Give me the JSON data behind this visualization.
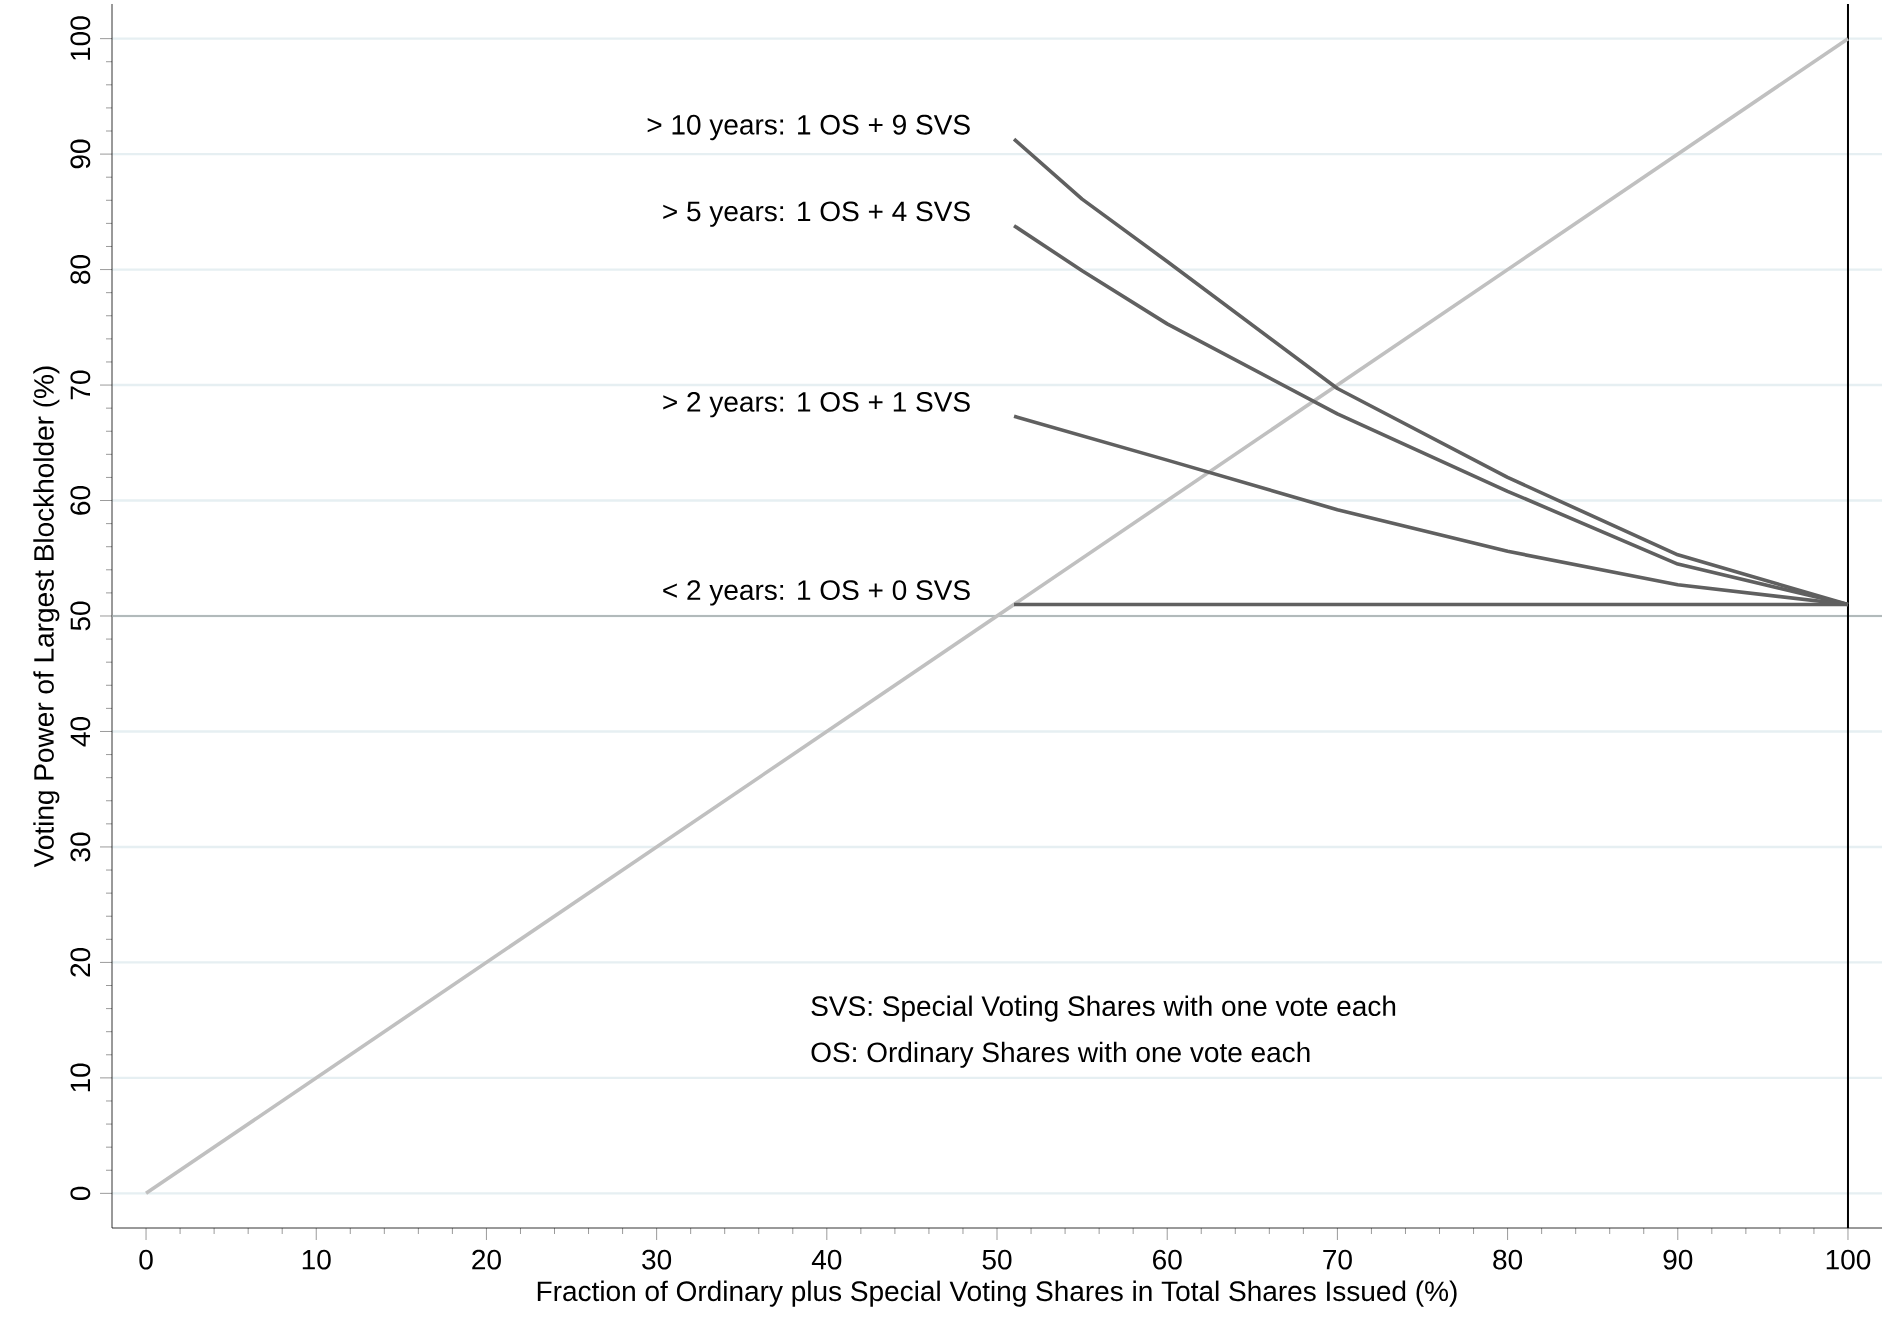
{
  "chart_data": {
    "type": "line",
    "xlabel": "Fraction of Ordinary plus Special Voting Shares in Total Shares Issued (%)",
    "ylabel": "Voting Power of Largest Blockholder (%)",
    "xlim": [
      -2,
      102
    ],
    "ylim": [
      -3,
      103
    ],
    "xticks": [
      0,
      {
        "value": 2,
        "label": null
      },
      {
        "value": 4,
        "label": null
      },
      {
        "value": 6,
        "label": null
      },
      {
        "value": 8,
        "label": null
      },
      10,
      {
        "value": 12,
        "label": null
      },
      {
        "value": 14,
        "label": null
      },
      {
        "value": 16,
        "label": null
      },
      {
        "value": 18,
        "label": null
      },
      20,
      {
        "value": 22,
        "label": null
      },
      {
        "value": 24,
        "label": null
      },
      {
        "value": 26,
        "label": null
      },
      {
        "value": 28,
        "label": null
      },
      30,
      {
        "value": 32,
        "label": null
      },
      {
        "value": 34,
        "label": null
      },
      {
        "value": 36,
        "label": null
      },
      {
        "value": 38,
        "label": null
      },
      40,
      {
        "value": 42,
        "label": null
      },
      {
        "value": 44,
        "label": null
      },
      {
        "value": 46,
        "label": null
      },
      {
        "value": 48,
        "label": null
      },
      50,
      {
        "value": 52,
        "label": null
      },
      {
        "value": 54,
        "label": null
      },
      {
        "value": 56,
        "label": null
      },
      {
        "value": 58,
        "label": null
      },
      60,
      {
        "value": 62,
        "label": null
      },
      {
        "value": 64,
        "label": null
      },
      {
        "value": 66,
        "label": null
      },
      {
        "value": 68,
        "label": null
      },
      70,
      {
        "value": 72,
        "label": null
      },
      {
        "value": 74,
        "label": null
      },
      {
        "value": 76,
        "label": null
      },
      {
        "value": 78,
        "label": null
      },
      80,
      {
        "value": 82,
        "label": null
      },
      {
        "value": 84,
        "label": null
      },
      {
        "value": 86,
        "label": null
      },
      {
        "value": 88,
        "label": null
      },
      90,
      {
        "value": 92,
        "label": null
      },
      {
        "value": 94,
        "label": null
      },
      {
        "value": 96,
        "label": null
      },
      {
        "value": 98,
        "label": null
      },
      100
    ],
    "yticks": [
      0,
      {
        "value": 2,
        "label": null
      },
      {
        "value": 4,
        "label": null
      },
      {
        "value": 6,
        "label": null
      },
      {
        "value": 8,
        "label": null
      },
      10,
      {
        "value": 12,
        "label": null
      },
      {
        "value": 14,
        "label": null
      },
      {
        "value": 16,
        "label": null
      },
      {
        "value": 18,
        "label": null
      },
      20,
      {
        "value": 22,
        "label": null
      },
      {
        "value": 24,
        "label": null
      },
      {
        "value": 26,
        "label": null
      },
      {
        "value": 28,
        "label": null
      },
      30,
      {
        "value": 32,
        "label": null
      },
      {
        "value": 34,
        "label": null
      },
      {
        "value": 36,
        "label": null
      },
      {
        "value": 38,
        "label": null
      },
      40,
      {
        "value": 42,
        "label": null
      },
      {
        "value": 44,
        "label": null
      },
      {
        "value": 46,
        "label": null
      },
      {
        "value": 48,
        "label": null
      },
      50,
      {
        "value": 52,
        "label": null
      },
      {
        "value": 54,
        "label": null
      },
      {
        "value": 56,
        "label": null
      },
      {
        "value": 58,
        "label": null
      },
      60,
      {
        "value": 62,
        "label": null
      },
      {
        "value": 64,
        "label": null
      },
      {
        "value": 66,
        "label": null
      },
      {
        "value": 68,
        "label": null
      },
      70,
      {
        "value": 72,
        "label": null
      },
      {
        "value": 74,
        "label": null
      },
      {
        "value": 76,
        "label": null
      },
      {
        "value": 78,
        "label": null
      },
      80,
      {
        "value": 82,
        "label": null
      },
      {
        "value": 84,
        "label": null
      },
      {
        "value": 86,
        "label": null
      },
      {
        "value": 88,
        "label": null
      },
      90,
      {
        "value": 92,
        "label": null
      },
      {
        "value": 94,
        "label": null
      },
      {
        "value": 96,
        "label": null
      },
      {
        "value": 98,
        "label": null
      },
      100
    ],
    "grid": "y",
    "legend": false,
    "marker": "none",
    "line_style": "solid",
    "series": [
      {
        "color": "#c0c0c0",
        "x": [
          0,
          100
        ],
        "values": [
          0,
          100
        ]
      },
      {
        "name": "> 10 years: 1 OS + 9 SVS",
        "color": "#606060",
        "x": [
          51,
          55,
          60,
          70,
          80,
          90,
          100
        ],
        "values": [
          91.3,
          86.1,
          80.7,
          69.7,
          62.0,
          55.3,
          51
        ]
      },
      {
        "name": ">  5 years: 1 OS + 4 SVS",
        "color": "#606060",
        "x": [
          51,
          55,
          60,
          70,
          80,
          90,
          100
        ],
        "values": [
          83.8,
          79.9,
          75.3,
          67.5,
          60.8,
          54.5,
          51
        ]
      },
      {
        "name": ">  2 years: 1 OS + 1 SVS",
        "color": "#606060",
        "x": [
          51,
          60,
          70,
          80,
          90,
          100
        ],
        "values": [
          67.3,
          63.5,
          59.2,
          55.6,
          52.7,
          51
        ]
      },
      {
        "name": "<  2 years: 1 OS + 0 SVS",
        "color": "#606060",
        "x": [
          51,
          100
        ],
        "values": [
          51,
          51
        ]
      }
    ],
    "ref_lines": [
      {
        "axis": "y",
        "value": 50,
        "color": "#a0a8a8"
      },
      {
        "axis": "x",
        "value": 100,
        "color": "#000000"
      }
    ],
    "annotations": [
      "SVS: Special Voting Shares with one vote each",
      "OS: Ordinary Shares with one vote each"
    ]
  }
}
